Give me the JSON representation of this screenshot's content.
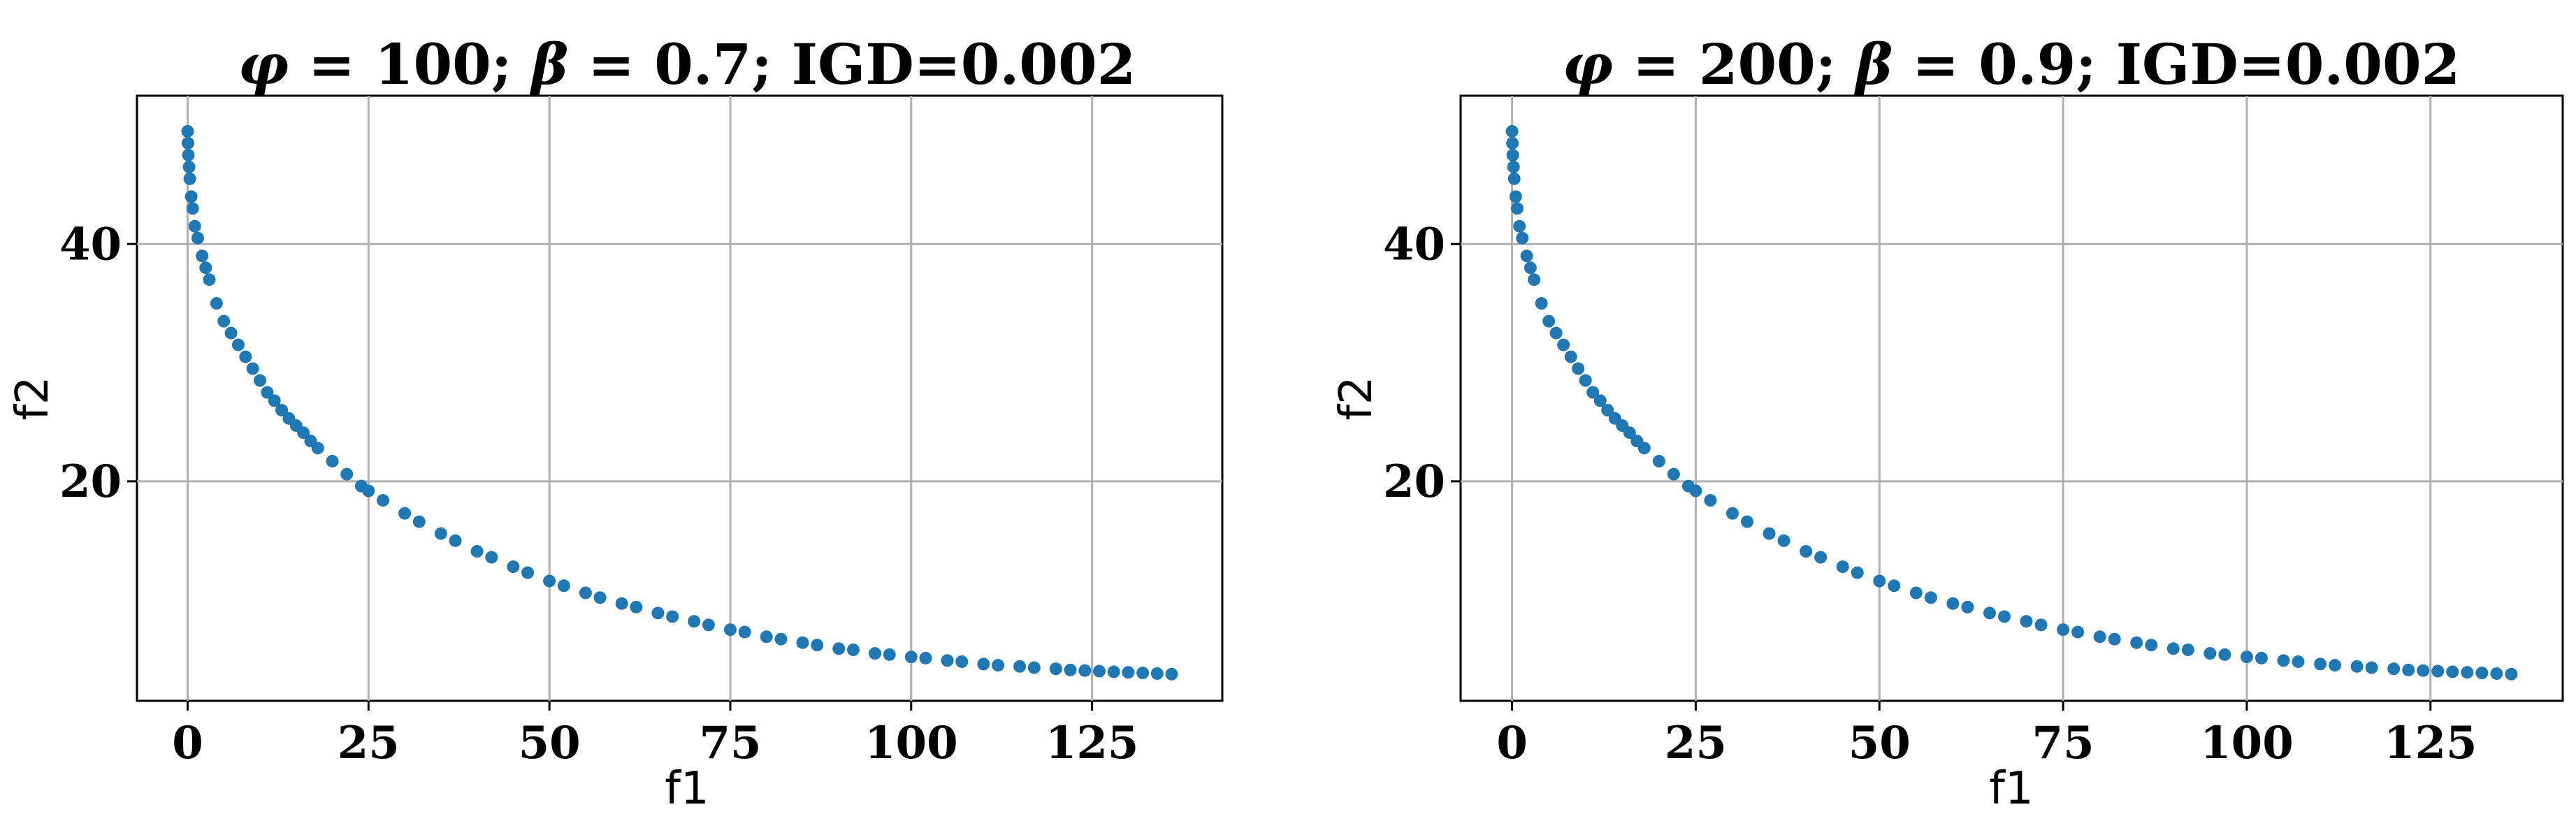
{
  "chart_data": [
    {
      "type": "scatter",
      "title": "φ = 100; β = 0.7; IGD=0.002",
      "title_parts": [
        {
          "text": "φ",
          "italic": true
        },
        {
          "text": " = 100; ",
          "italic": false
        },
        {
          "text": "β",
          "italic": true
        },
        {
          "text": " = 0.7; IGD=0.002",
          "italic": false
        }
      ],
      "xlabel": "f1",
      "ylabel": "f2",
      "xlim": [
        -7,
        143
      ],
      "ylim": [
        1.5,
        52.5
      ],
      "xticks": [
        0,
        25,
        50,
        75,
        100,
        125
      ],
      "xtick_labels": [
        "0",
        "25",
        "50",
        "75",
        "100",
        "125"
      ],
      "yticks": [
        20,
        40
      ],
      "ytick_labels": [
        "20",
        "40"
      ],
      "grid": true,
      "marker_color": "#1f77b4",
      "series": [
        {
          "x": [
            0,
            0.05,
            0.1,
            0.2,
            0.3,
            0.5,
            0.7,
            1,
            1.4,
            2,
            2.5,
            3,
            4,
            5,
            6,
            7,
            8,
            9,
            10,
            11,
            12,
            13,
            14,
            15,
            16,
            17,
            18,
            20,
            22,
            24,
            25,
            27,
            30,
            32,
            35,
            37,
            40,
            42,
            45,
            47,
            50,
            52,
            55,
            57,
            60,
            62,
            65,
            67,
            70,
            72,
            75,
            77,
            80,
            82,
            85,
            87,
            90,
            92,
            95,
            97,
            100,
            102,
            105,
            107,
            110,
            112,
            115,
            117,
            120,
            122,
            124,
            126,
            128,
            130,
            132,
            134,
            136
          ],
          "y": [
            49.5,
            48.5,
            47.5,
            46.5,
            45.5,
            44,
            43,
            41.5,
            40.5,
            39,
            38,
            37,
            35,
            33.5,
            32.5,
            31.5,
            30.5,
            29.5,
            28.5,
            27.5,
            26.8,
            26,
            25.3,
            24.7,
            24.1,
            23.4,
            22.8,
            21.7,
            20.6,
            19.6,
            19.2,
            18.4,
            17.3,
            16.6,
            15.6,
            15,
            14.1,
            13.6,
            12.8,
            12.3,
            11.6,
            11.2,
            10.6,
            10.2,
            9.7,
            9.4,
            8.9,
            8.6,
            8.2,
            7.9,
            7.5,
            7.3,
            6.9,
            6.7,
            6.4,
            6.2,
            5.9,
            5.8,
            5.5,
            5.4,
            5.2,
            5.1,
            4.9,
            4.8,
            4.6,
            4.5,
            4.4,
            4.3,
            4.2,
            4.1,
            4.05,
            4,
            3.95,
            3.9,
            3.85,
            3.8,
            3.75
          ]
        }
      ]
    },
    {
      "type": "scatter",
      "title": "φ = 200; β = 0.9; IGD=0.002",
      "title_parts": [
        {
          "text": "φ",
          "italic": true
        },
        {
          "text": " = 200; ",
          "italic": false
        },
        {
          "text": "β",
          "italic": true
        },
        {
          "text": " = 0.9; IGD=0.002",
          "italic": false
        }
      ],
      "xlabel": "f1",
      "ylabel": "f2",
      "xlim": [
        -7,
        143
      ],
      "ylim": [
        1.5,
        52.5
      ],
      "xticks": [
        0,
        25,
        50,
        75,
        100,
        125
      ],
      "xtick_labels": [
        "0",
        "25",
        "50",
        "75",
        "100",
        "125"
      ],
      "yticks": [
        20,
        40
      ],
      "ytick_labels": [
        "20",
        "40"
      ],
      "grid": true,
      "marker_color": "#1f77b4",
      "series": [
        {
          "x": [
            0,
            0.05,
            0.1,
            0.2,
            0.3,
            0.5,
            0.7,
            1,
            1.4,
            2,
            2.5,
            3,
            4,
            5,
            6,
            7,
            8,
            9,
            10,
            11,
            12,
            13,
            14,
            15,
            16,
            17,
            18,
            20,
            22,
            24,
            25,
            27,
            30,
            32,
            35,
            37,
            40,
            42,
            45,
            47,
            50,
            52,
            55,
            57,
            60,
            62,
            65,
            67,
            70,
            72,
            75,
            77,
            80,
            82,
            85,
            87,
            90,
            92,
            95,
            97,
            100,
            102,
            105,
            107,
            110,
            112,
            115,
            117,
            120,
            122,
            124,
            126,
            128,
            130,
            132,
            134,
            136
          ],
          "y": [
            49.5,
            48.5,
            47.5,
            46.5,
            45.5,
            44,
            43,
            41.5,
            40.5,
            39,
            38,
            37,
            35,
            33.5,
            32.5,
            31.5,
            30.5,
            29.5,
            28.5,
            27.5,
            26.8,
            26,
            25.3,
            24.7,
            24.1,
            23.4,
            22.8,
            21.7,
            20.6,
            19.6,
            19.2,
            18.4,
            17.3,
            16.6,
            15.6,
            15,
            14.1,
            13.6,
            12.8,
            12.3,
            11.6,
            11.2,
            10.6,
            10.2,
            9.7,
            9.4,
            8.9,
            8.6,
            8.2,
            7.9,
            7.5,
            7.3,
            6.9,
            6.7,
            6.4,
            6.2,
            5.9,
            5.8,
            5.5,
            5.4,
            5.2,
            5.1,
            4.9,
            4.8,
            4.6,
            4.5,
            4.4,
            4.3,
            4.2,
            4.1,
            4.05,
            4,
            3.95,
            3.9,
            3.85,
            3.8,
            3.75
          ]
        }
      ]
    }
  ]
}
